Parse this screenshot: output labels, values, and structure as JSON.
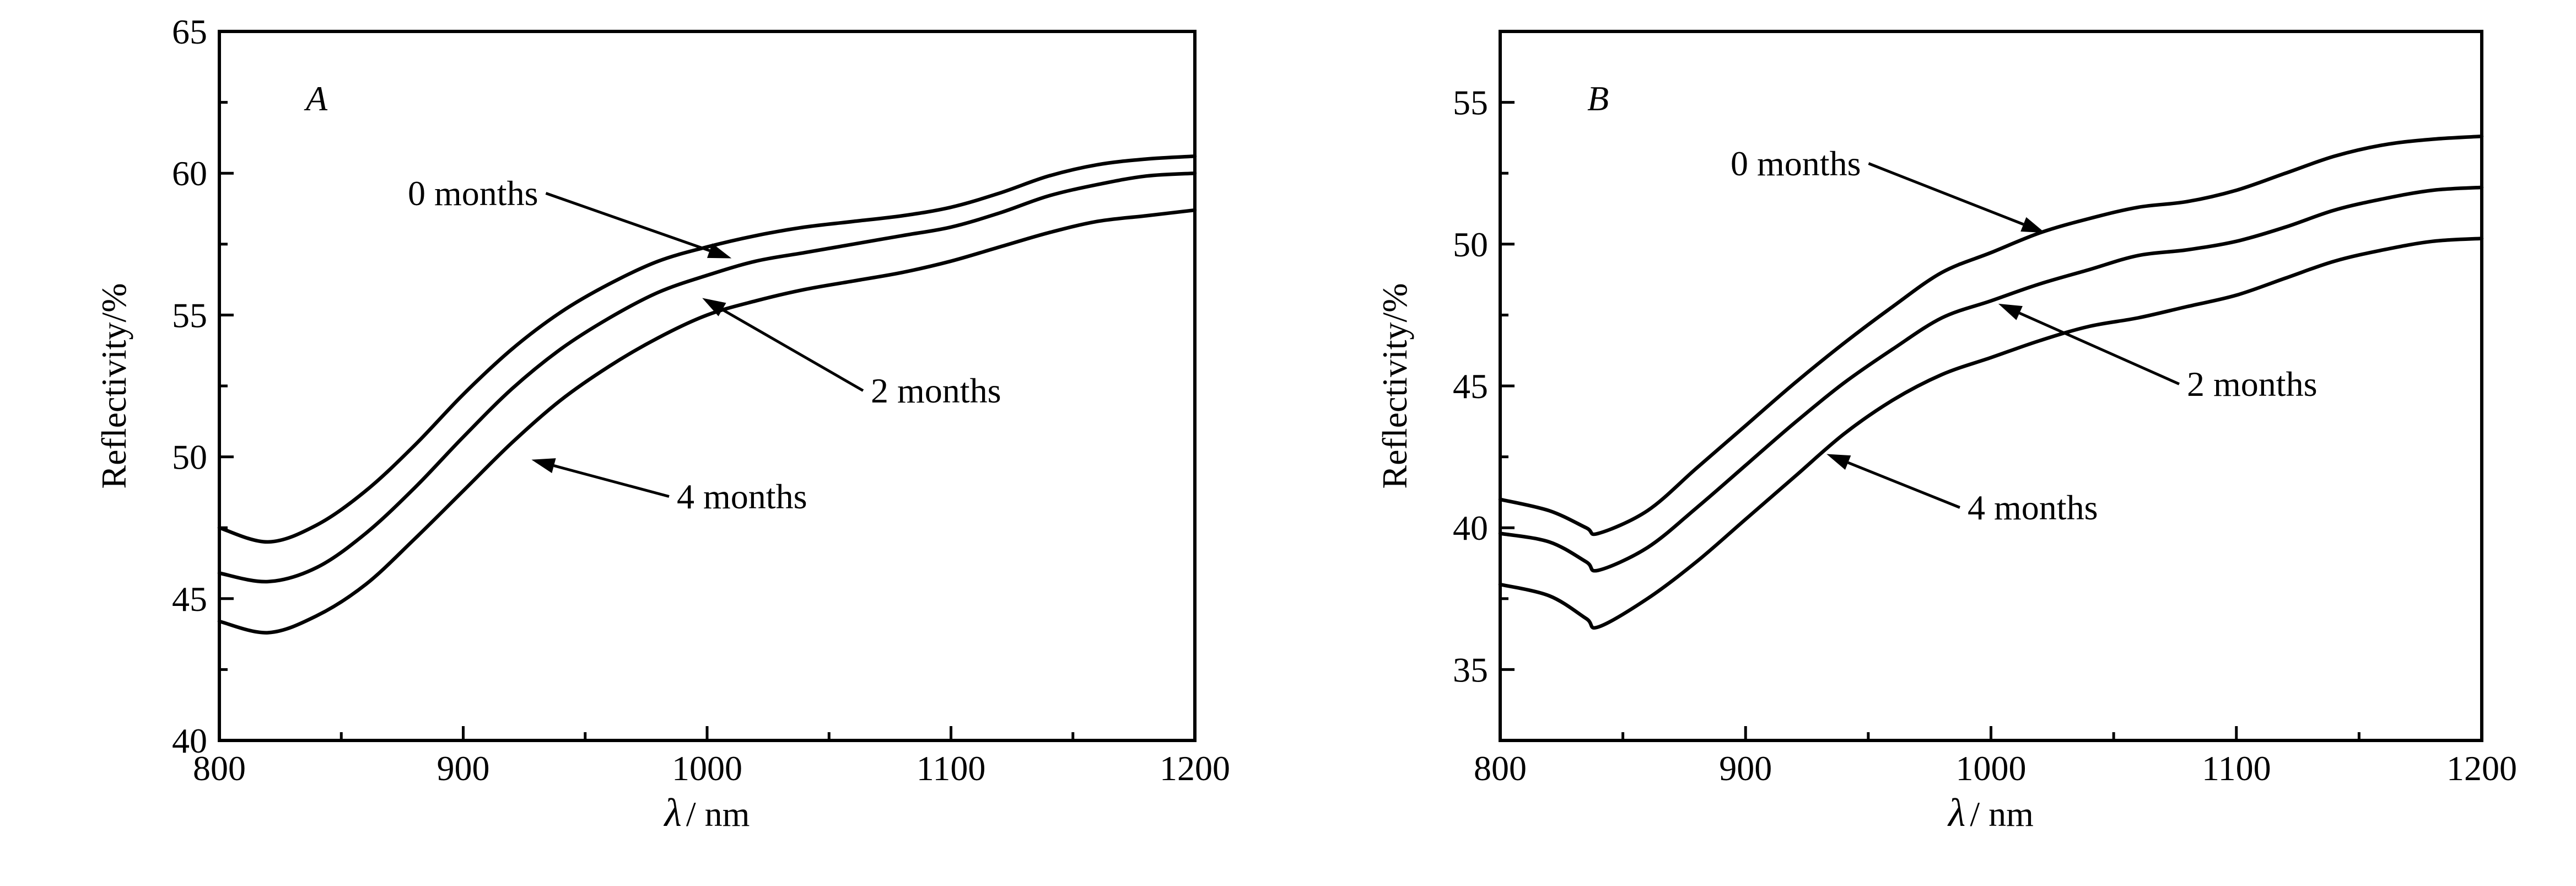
{
  "chart_data": [
    {
      "type": "line",
      "panel_label": "A",
      "xlabel_symbol": "λ",
      "xlabel_unit": "/ nm",
      "ylabel": "Reflectivity/%",
      "xlim": [
        800,
        1200
      ],
      "ylim": [
        40,
        65
      ],
      "x_ticks": [
        800,
        900,
        1000,
        1100,
        1200
      ],
      "y_ticks": [
        40,
        45,
        50,
        55,
        60,
        65
      ],
      "series": [
        {
          "name": "0 months",
          "x": [
            800,
            820,
            840,
            860,
            880,
            900,
            920,
            940,
            960,
            980,
            1000,
            1020,
            1040,
            1060,
            1080,
            1100,
            1120,
            1140,
            1160,
            1180,
            1200
          ],
          "y": [
            47.5,
            47.0,
            47.6,
            48.8,
            50.4,
            52.2,
            53.8,
            55.1,
            56.1,
            56.9,
            57.4,
            57.8,
            58.1,
            58.3,
            58.5,
            58.8,
            59.3,
            59.9,
            60.3,
            60.5,
            60.6
          ]
        },
        {
          "name": "2 months",
          "x": [
            800,
            820,
            840,
            860,
            880,
            900,
            920,
            940,
            960,
            980,
            1000,
            1020,
            1040,
            1060,
            1080,
            1100,
            1120,
            1140,
            1160,
            1180,
            1200
          ],
          "y": [
            45.9,
            45.6,
            46.1,
            47.3,
            48.9,
            50.7,
            52.4,
            53.8,
            54.9,
            55.8,
            56.4,
            56.9,
            57.2,
            57.5,
            57.8,
            58.1,
            58.6,
            59.2,
            59.6,
            59.9,
            60.0
          ]
        },
        {
          "name": "4 months",
          "x": [
            800,
            820,
            840,
            860,
            880,
            900,
            920,
            940,
            960,
            980,
            1000,
            1020,
            1040,
            1060,
            1080,
            1100,
            1120,
            1140,
            1160,
            1180,
            1200
          ],
          "y": [
            44.2,
            43.8,
            44.4,
            45.5,
            47.1,
            48.8,
            50.5,
            52.0,
            53.2,
            54.2,
            55.0,
            55.5,
            55.9,
            56.2,
            56.5,
            56.9,
            57.4,
            57.9,
            58.3,
            58.5,
            58.7
          ]
        }
      ],
      "annotations": [
        {
          "text": "0 months",
          "target": [
            1010,
            57.0
          ]
        },
        {
          "text": "2 months",
          "target": [
            998,
            55.6
          ]
        },
        {
          "text": "4 months",
          "target": [
            928,
            49.9
          ]
        }
      ]
    },
    {
      "type": "line",
      "panel_label": "B",
      "xlabel_symbol": "λ",
      "xlabel_unit": "/ nm",
      "ylabel": "Reflectivity/%",
      "xlim": [
        800,
        1200
      ],
      "ylim": [
        32.5,
        57.5
      ],
      "x_ticks": [
        800,
        900,
        1000,
        1100,
        1200
      ],
      "y_ticks": [
        35,
        40,
        45,
        50,
        55
      ],
      "series": [
        {
          "name": "0 months",
          "x": [
            800,
            820,
            835,
            840,
            860,
            880,
            900,
            920,
            940,
            960,
            980,
            1000,
            1020,
            1040,
            1060,
            1080,
            1100,
            1120,
            1140,
            1160,
            1180,
            1200
          ],
          "y": [
            41.0,
            40.6,
            40.0,
            39.8,
            40.6,
            42.1,
            43.6,
            45.1,
            46.5,
            47.8,
            49.0,
            49.7,
            50.4,
            50.9,
            51.3,
            51.5,
            51.9,
            52.5,
            53.1,
            53.5,
            53.7,
            53.8
          ]
        },
        {
          "name": "2 months",
          "x": [
            800,
            820,
            835,
            840,
            860,
            880,
            900,
            920,
            940,
            960,
            980,
            1000,
            1020,
            1040,
            1060,
            1080,
            1100,
            1120,
            1140,
            1160,
            1180,
            1200
          ],
          "y": [
            39.8,
            39.5,
            38.8,
            38.5,
            39.3,
            40.7,
            42.2,
            43.7,
            45.1,
            46.3,
            47.4,
            48.0,
            48.6,
            49.1,
            49.6,
            49.8,
            50.1,
            50.6,
            51.2,
            51.6,
            51.9,
            52.0
          ]
        },
        {
          "name": "4 months",
          "x": [
            800,
            820,
            835,
            840,
            860,
            880,
            900,
            920,
            940,
            960,
            980,
            1000,
            1020,
            1040,
            1060,
            1080,
            1100,
            1120,
            1140,
            1160,
            1180,
            1200
          ],
          "y": [
            38.0,
            37.6,
            36.8,
            36.5,
            37.5,
            38.8,
            40.3,
            41.8,
            43.3,
            44.5,
            45.4,
            46.0,
            46.6,
            47.1,
            47.4,
            47.8,
            48.2,
            48.8,
            49.4,
            49.8,
            50.1,
            50.2
          ]
        }
      ],
      "annotations": [
        {
          "text": "0 months",
          "target": [
            1022,
            50.4
          ]
        },
        {
          "text": "2 months",
          "target": [
            1003,
            47.9
          ]
        },
        {
          "text": "4 months",
          "target": [
            933,
            42.6
          ]
        }
      ]
    }
  ]
}
